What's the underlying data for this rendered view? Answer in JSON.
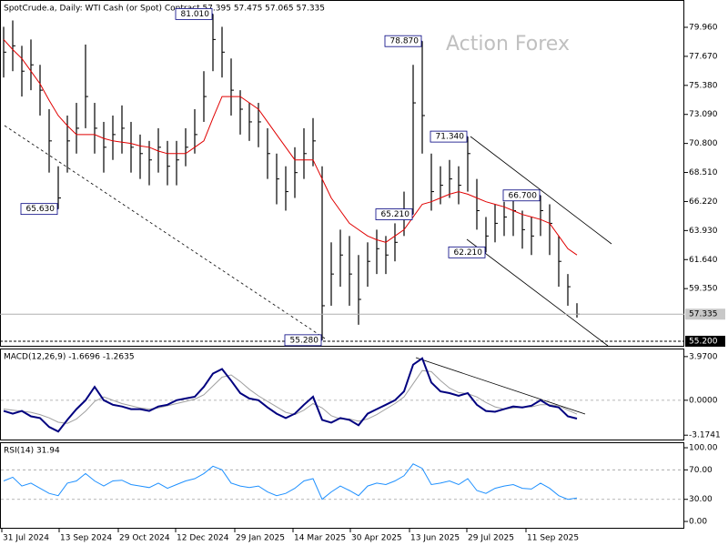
{
  "chart_data": [
    {
      "type": "ohlc",
      "title": "SpotCrude.a, Daily:  WTI Cash (or Spot) Contract 57.395 57.475 57.065 57.335",
      "watermark": "Action Forex",
      "color": "#000000",
      "high": [
        80,
        80.5,
        78.5,
        79,
        77,
        73.5,
        69,
        73,
        74,
        78.6,
        74,
        72.5,
        73,
        73.8,
        72.5,
        71.5,
        71,
        72,
        71,
        71,
        72,
        73.5,
        76.5,
        81.01,
        80,
        77.5,
        75,
        74,
        74,
        72,
        70,
        69,
        70.5,
        72,
        72.8,
        69,
        63,
        64,
        63.5,
        62,
        63,
        64,
        63.5,
        64.5,
        67,
        77,
        78.87,
        70,
        69,
        69.5,
        69,
        71.34,
        68,
        65,
        66,
        66.2,
        66.5,
        65.5,
        65,
        66.7,
        66,
        63.5,
        60.5,
        58.2
      ],
      "low": [
        76,
        76.5,
        74.5,
        75,
        73,
        68.5,
        65.63,
        68.5,
        70,
        72,
        70,
        68.5,
        69.5,
        70,
        68.5,
        68,
        67.5,
        68.5,
        67.5,
        67.5,
        69,
        70,
        72.5,
        76.5,
        76,
        73,
        71.5,
        71,
        70.5,
        68,
        66,
        65.5,
        66.5,
        68,
        69,
        55.28,
        58,
        59.5,
        58,
        56.5,
        59.5,
        60.5,
        60.5,
        61.5,
        63.5,
        65.21,
        70,
        65.5,
        66,
        66.5,
        66,
        67,
        64,
        62.21,
        63,
        63.5,
        63.5,
        62.5,
        62,
        63.5,
        62,
        59.5,
        58,
        57.065
      ],
      "close": [
        78,
        78.5,
        76.5,
        77,
        75,
        71,
        66.5,
        71,
        72,
        74.5,
        72,
        70.5,
        71.5,
        72,
        70.5,
        70,
        69.5,
        70.5,
        69,
        69.5,
        70.5,
        71.5,
        74.5,
        79,
        78,
        75,
        73.5,
        72.5,
        72.5,
        70,
        68,
        67,
        68.5,
        70,
        71,
        58,
        60.5,
        62,
        60.5,
        58.5,
        61.5,
        62.5,
        62,
        63,
        65.5,
        74,
        73,
        67,
        67.5,
        68,
        67.5,
        70,
        65.5,
        63.5,
        64.5,
        65,
        65.5,
        64,
        63.5,
        65.5,
        64.5,
        61.5,
        59.5,
        57.335
      ],
      "moving_average": {
        "color": "#e00000",
        "values": [
          79,
          78.2,
          77.5,
          76.5,
          75.5,
          74.2,
          73,
          72.2,
          71.5,
          71.5,
          71.5,
          71.2,
          71,
          70.9,
          70.8,
          70.6,
          70.5,
          70.2,
          70,
          70,
          70,
          70.5,
          71,
          72.8,
          74.5,
          74.5,
          74.5,
          74,
          73.5,
          72.5,
          71.5,
          70.5,
          69.5,
          69.5,
          69.5,
          68,
          66.5,
          65.5,
          64.5,
          64,
          63.5,
          63.2,
          63,
          63.5,
          64,
          65,
          66,
          66.2,
          66.5,
          66.8,
          67,
          66.8,
          66.5,
          66.2,
          66,
          65.8,
          65.5,
          65.2,
          65,
          64.8,
          64.5,
          63.5,
          62.5,
          62
        ]
      },
      "annotations": [
        {
          "value": 81.01,
          "label": "81.010"
        },
        {
          "value": 78.87,
          "label": "78.870"
        },
        {
          "value": 71.34,
          "label": "71.340"
        },
        {
          "value": 66.7,
          "label": "66.700"
        },
        {
          "value": 65.63,
          "label": "65.630"
        },
        {
          "value": 65.21,
          "label": "65.210"
        },
        {
          "value": 62.21,
          "label": "62.210"
        },
        {
          "value": 55.28,
          "label": "55.280"
        }
      ],
      "current_price": {
        "value": 57.335,
        "label": "57.335"
      },
      "support": {
        "value": 55.2,
        "label": "55.200"
      },
      "ylim": [
        54.84,
        81.97
      ],
      "yticks": [
        {
          "value": 79.96,
          "label": "79.960"
        },
        {
          "value": 77.67,
          "label": "77.670"
        },
        {
          "value": 75.38,
          "label": "75.380"
        },
        {
          "value": 73.09,
          "label": "73.090"
        },
        {
          "value": 70.8,
          "label": "70.800"
        },
        {
          "value": 68.51,
          "label": "68.510"
        },
        {
          "value": 66.22,
          "label": "66.220"
        },
        {
          "value": 63.93,
          "label": "63.930"
        },
        {
          "value": 61.64,
          "label": "61.640"
        },
        {
          "value": 59.35,
          "label": "59.350"
        }
      ],
      "xlim": [
        -0.4,
        74.6
      ],
      "xticks": [
        {
          "value": -0.2,
          "label": "31 Jul 2024"
        },
        {
          "value": 6.1,
          "label": "13 Sep 2024"
        },
        {
          "value": 12.6,
          "label": "29 Oct 2024"
        },
        {
          "value": 18.9,
          "label": "12 Dec 2024"
        },
        {
          "value": 25.4,
          "label": "29 Jan 2025"
        },
        {
          "value": 31.8,
          "label": "14 Mar 2025"
        },
        {
          "value": 38.1,
          "label": "30 Apr 2025"
        },
        {
          "value": 44.6,
          "label": "13 Jun 2025"
        },
        {
          "value": 50.9,
          "label": "29 Jul 2025"
        },
        {
          "value": 57.4,
          "label": "11 Sep 2025"
        }
      ]
    },
    {
      "type": "line",
      "title": "MACD(12,26,9) -1.6696 -1.2635",
      "series": [
        {
          "color": "#00007f",
          "values": [
            -0.97,
            -1.22,
            -0.97,
            -1.46,
            -1.62,
            -2.43,
            -2.84,
            -1.78,
            -0.81,
            0,
            1.22,
            0,
            -0.41,
            -0.57,
            -0.81,
            -0.81,
            -0.97,
            -0.57,
            -0.41,
            0,
            0.16,
            0.32,
            1.22,
            2.43,
            2.84,
            1.78,
            0.65,
            0.16,
            0,
            -0.65,
            -1.22,
            -1.62,
            -1.22,
            -0.41,
            0.32,
            -1.78,
            -2.03,
            -1.62,
            -1.78,
            -2.27,
            -1.22,
            -0.81,
            -0.41,
            0,
            0.81,
            3.24,
            3.81,
            1.62,
            0.81,
            0.65,
            0.41,
            0.65,
            -0.41,
            -0.97,
            -1.05,
            -0.81,
            -0.57,
            -0.65,
            -0.49,
            0,
            -0.49,
            -0.65,
            -1.46,
            -1.6696
          ]
        },
        {
          "color": "#a0a0a0",
          "values": [
            -0.8,
            -0.9,
            -1.0,
            -1.1,
            -1.3,
            -1.6,
            -2.0,
            -2.1,
            -1.7,
            -1.0,
            -0.1,
            0.3,
            0.0,
            -0.3,
            -0.5,
            -0.7,
            -0.8,
            -0.7,
            -0.5,
            -0.3,
            -0.1,
            0.1,
            0.5,
            1.3,
            2.1,
            2.3,
            1.7,
            1.0,
            0.4,
            -0.1,
            -0.6,
            -1.1,
            -1.3,
            -0.9,
            -0.3,
            -0.7,
            -1.4,
            -1.7,
            -1.7,
            -1.9,
            -1.7,
            -1.3,
            -0.8,
            -0.3,
            0.3,
            1.5,
            2.7,
            2.6,
            1.8,
            1.1,
            0.7,
            0.6,
            0.3,
            -0.2,
            -0.6,
            -0.8,
            -0.7,
            -0.6,
            -0.6,
            -0.4,
            -0.4,
            -0.5,
            -0.9,
            -1.2635
          ]
        }
      ],
      "ylim": [
        -3.57,
        4.62
      ],
      "yticks": [
        {
          "value": 3.97,
          "label": "3.9700"
        },
        {
          "value": 0,
          "label": "0.0000"
        },
        {
          "value": -3.1741,
          "label": "-3.1741"
        }
      ]
    },
    {
      "type": "line",
      "title": "RSI(14) 31.94",
      "series": [
        {
          "color": "#1e90ff",
          "values": [
            55,
            60,
            48,
            52,
            45,
            38,
            35,
            52,
            55,
            65,
            55,
            48,
            55,
            56,
            50,
            48,
            46,
            52,
            45,
            50,
            55,
            58,
            65,
            75,
            70,
            52,
            48,
            46,
            48,
            40,
            35,
            38,
            45,
            55,
            58,
            30,
            40,
            48,
            42,
            35,
            48,
            52,
            50,
            55,
            62,
            78,
            72,
            50,
            52,
            55,
            50,
            58,
            42,
            38,
            45,
            48,
            50,
            45,
            44,
            52,
            45,
            35,
            30,
            31.94
          ]
        }
      ],
      "ylim": [
        -8.6,
        106.2
      ],
      "yticks": [
        {
          "value": 100,
          "label": "100.00"
        },
        {
          "value": 70,
          "label": "70.00"
        },
        {
          "value": 30,
          "label": "30.00"
        },
        {
          "value": 0,
          "label": "0.00"
        }
      ]
    }
  ]
}
